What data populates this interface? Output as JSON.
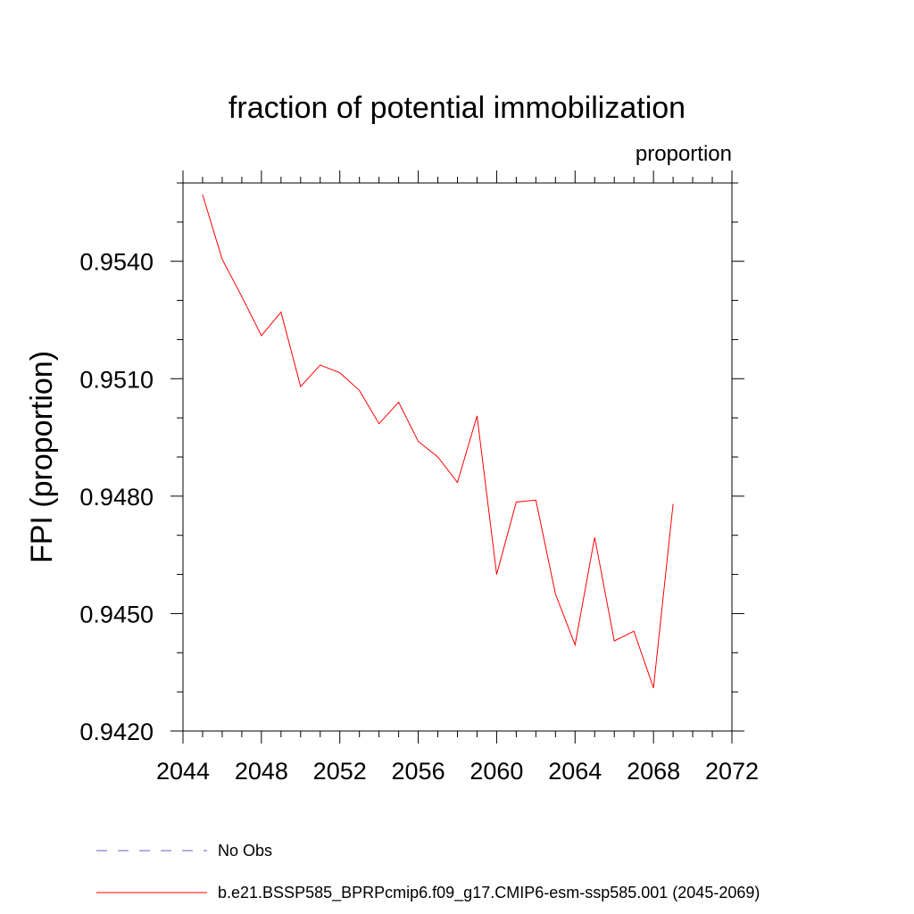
{
  "chart_data": {
    "type": "line",
    "title": "fraction of potential immobilization",
    "units_label": "proportion",
    "ylabel": "FPI  (proportion)",
    "xlabel": "",
    "xlim": [
      2044,
      2072
    ],
    "ylim": [
      0.942,
      0.956
    ],
    "x_ticks": [
      "2044",
      "2048",
      "2052",
      "2056",
      "2060",
      "2064",
      "2068",
      "2072"
    ],
    "y_ticks": [
      "0.9420",
      "0.9450",
      "0.9480",
      "0.9510",
      "0.9540"
    ],
    "grid": false,
    "legend_position": "bottom",
    "series": [
      {
        "name": "b.e21.BSSP585_BPRPcmip6.f09_g17.CMIP6-esm-ssp585.001 (2045-2069)",
        "color": "#ff0000",
        "style": "solid",
        "x": [
          2045,
          2046,
          2047,
          2048,
          2049,
          2050,
          2051,
          2052,
          2053,
          2054,
          2055,
          2056,
          2057,
          2058,
          2059,
          2060,
          2061,
          2062,
          2063,
          2064,
          2065,
          2066,
          2067,
          2068,
          2069
        ],
        "values": [
          0.9557,
          0.95405,
          0.9531,
          0.9521,
          0.9527,
          0.9508,
          0.95135,
          0.95115,
          0.9507,
          0.94985,
          0.9504,
          0.9494,
          0.949,
          0.94835,
          0.95005,
          0.946,
          0.94785,
          0.9479,
          0.9455,
          0.9442,
          0.94695,
          0.9443,
          0.94455,
          0.9431,
          0.9478
        ]
      },
      {
        "name": "No Obs",
        "color": "#6a5acd",
        "style": "dashed",
        "x": [],
        "values": []
      }
    ]
  }
}
